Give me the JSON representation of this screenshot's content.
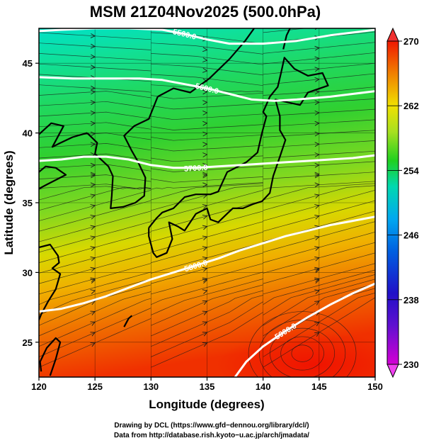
{
  "title": "MSM 21Z04Nov2025 (500.0hPa)",
  "xaxis": {
    "label": "Longitude (degrees)",
    "range": [
      120,
      150
    ],
    "ticks": [
      "120",
      "125",
      "130",
      "135",
      "140",
      "145",
      "150"
    ]
  },
  "yaxis": {
    "label": "Latitude  (degrees)",
    "range": [
      22.5,
      47.5
    ],
    "ticks": [
      "25",
      "30",
      "35",
      "40",
      "45"
    ]
  },
  "colorbar": {
    "range": [
      230,
      270
    ],
    "ticks": [
      "230",
      "238",
      "246",
      "254",
      "262",
      "270"
    ],
    "colors": [
      "#d400d4",
      "#2010c8",
      "#00a8f0",
      "#00d8b0",
      "#20d020",
      "#a8e020",
      "#f0e000",
      "#f08000",
      "#f01800"
    ]
  },
  "contours": [
    {
      "label": "5500.0",
      "value": 5500,
      "points": [
        [
          120,
          47.3
        ],
        [
          122,
          47.4
        ],
        [
          125,
          47.5
        ],
        [
          128,
          47.5
        ],
        [
          131,
          47.4
        ],
        [
          133,
          47.1
        ],
        [
          135,
          46.7
        ],
        [
          137,
          46.4
        ],
        [
          140,
          46.4
        ],
        [
          143,
          46.6
        ],
        [
          146,
          47.0
        ],
        [
          148,
          47.2
        ],
        [
          150,
          47.4
        ]
      ]
    },
    {
      "label": "5600.0",
      "value": 5600,
      "points": [
        [
          120,
          44.0
        ],
        [
          123,
          43.9
        ],
        [
          126,
          43.9
        ],
        [
          129,
          43.9
        ],
        [
          131,
          43.8
        ],
        [
          133,
          43.5
        ],
        [
          135,
          43.2
        ],
        [
          137,
          42.8
        ],
        [
          139,
          42.4
        ],
        [
          141,
          42.3
        ],
        [
          143,
          42.4
        ],
        [
          146,
          42.6
        ],
        [
          148,
          42.8
        ],
        [
          150,
          43.0
        ]
      ]
    },
    {
      "label": "5700.0",
      "value": 5700,
      "points": [
        [
          120,
          38.0
        ],
        [
          122,
          38.1
        ],
        [
          124,
          38.3
        ],
        [
          126,
          38.3
        ],
        [
          128,
          38.1
        ],
        [
          130,
          37.7
        ],
        [
          132,
          37.5
        ],
        [
          134,
          37.5
        ],
        [
          136,
          37.6
        ],
        [
          138,
          37.7
        ],
        [
          140,
          37.8
        ],
        [
          142,
          37.9
        ],
        [
          144,
          38.0
        ],
        [
          146,
          38.1
        ],
        [
          148,
          38.2
        ],
        [
          150,
          38.4
        ]
      ]
    },
    {
      "label": "5800.0",
      "value": 5800,
      "points": [
        [
          120,
          27.2
        ],
        [
          122,
          27.4
        ],
        [
          124,
          27.8
        ],
        [
          126,
          28.3
        ],
        [
          128,
          28.9
        ],
        [
          130,
          29.5
        ],
        [
          132,
          30.0
        ],
        [
          134,
          30.5
        ],
        [
          136,
          31.0
        ],
        [
          138,
          31.6
        ],
        [
          140,
          32.1
        ],
        [
          142,
          32.6
        ],
        [
          144,
          33.0
        ],
        [
          146,
          33.4
        ],
        [
          148,
          33.7
        ],
        [
          150,
          34.0
        ]
      ]
    },
    {
      "label": "5900.0",
      "value": 5900,
      "points": [
        [
          137.5,
          22.5
        ],
        [
          138.5,
          23.6
        ],
        [
          140,
          24.7
        ],
        [
          142,
          25.8
        ],
        [
          144,
          26.8
        ],
        [
          146,
          27.7
        ],
        [
          148,
          28.5
        ],
        [
          150,
          29.2
        ]
      ]
    }
  ],
  "coastline": [
    {
      "name": "kyushu-shikoku-honshu-hokkaido",
      "points": [
        [
          129.8,
          33.2
        ],
        [
          130.5,
          33.9
        ],
        [
          131,
          34.3
        ],
        [
          132,
          34.6
        ],
        [
          133,
          35.4
        ],
        [
          134,
          35.6
        ],
        [
          135.3,
          35.6
        ],
        [
          136,
          35.8
        ],
        [
          136.8,
          37.2
        ],
        [
          137.3,
          37.4
        ],
        [
          138.5,
          37.9
        ],
        [
          139.5,
          38.6
        ],
        [
          139.9,
          40.0
        ],
        [
          140.3,
          41.2
        ],
        [
          140.0,
          41.5
        ],
        [
          140.6,
          42.6
        ],
        [
          141.3,
          43.3
        ],
        [
          141.6,
          44.3
        ],
        [
          141.9,
          45.4
        ],
        [
          142.8,
          44.6
        ],
        [
          144,
          44.1
        ],
        [
          145.3,
          44.3
        ],
        [
          145.8,
          43.4
        ],
        [
          144,
          42.9
        ],
        [
          143.3,
          42.0
        ],
        [
          141.1,
          42.4
        ],
        [
          141.5,
          41.2
        ],
        [
          141.5,
          40.2
        ],
        [
          142.0,
          39.5
        ],
        [
          141.5,
          38.3
        ],
        [
          140.9,
          36.9
        ],
        [
          140.6,
          35.7
        ],
        [
          139.9,
          35.1
        ],
        [
          139.1,
          34.9
        ],
        [
          138.2,
          34.6
        ],
        [
          137.3,
          34.6
        ],
        [
          136.9,
          34.3
        ],
        [
          136.0,
          33.6
        ],
        [
          135.3,
          33.8
        ],
        [
          135.0,
          34.6
        ],
        [
          134.0,
          34.2
        ],
        [
          133.0,
          33.0
        ],
        [
          132.4,
          33.3
        ],
        [
          131.6,
          33.6
        ],
        [
          131.9,
          32.4
        ],
        [
          131.4,
          31.4
        ],
        [
          130.5,
          31.1
        ],
        [
          130.2,
          31.4
        ],
        [
          129.8,
          32.6
        ],
        [
          129.8,
          33.2
        ]
      ]
    },
    {
      "name": "korea",
      "points": [
        [
          124.3,
          40.0
        ],
        [
          125.2,
          39.3
        ],
        [
          125.0,
          38.5
        ],
        [
          126.2,
          37.6
        ],
        [
          126.6,
          36.9
        ],
        [
          126.5,
          35.5
        ],
        [
          126.4,
          34.6
        ],
        [
          127.5,
          34.7
        ],
        [
          128.6,
          35.0
        ],
        [
          129.4,
          35.5
        ],
        [
          129.5,
          36.8
        ],
        [
          128.8,
          38.0
        ],
        [
          128.3,
          38.7
        ],
        [
          127.6,
          39.8
        ],
        [
          128.5,
          40.5
        ],
        [
          129.8,
          41.0
        ],
        [
          130.6,
          42.6
        ]
      ]
    },
    {
      "name": "china-russia",
      "points": [
        [
          120,
          31.8
        ],
        [
          121.0,
          32.0
        ],
        [
          121.7,
          31.2
        ],
        [
          121.8,
          30.7
        ],
        [
          121.2,
          30.3
        ],
        [
          121.9,
          29.9
        ],
        [
          121.5,
          28.8
        ],
        [
          120.8,
          27.9
        ],
        [
          120.2,
          27.0
        ],
        [
          120,
          26.6
        ]
      ]
    },
    {
      "name": "china-north",
      "points": [
        [
          120,
          36.0
        ],
        [
          120.7,
          36.3
        ],
        [
          122.4,
          37.0
        ],
        [
          121.5,
          37.5
        ],
        [
          120.6,
          37.6
        ],
        [
          120,
          37.2
        ]
      ]
    },
    {
      "name": "liaodong",
      "points": [
        [
          120,
          39.9
        ],
        [
          121.1,
          40.7
        ],
        [
          122.2,
          40.5
        ],
        [
          121.2,
          39.0
        ],
        [
          121.7,
          39.2
        ],
        [
          123.0,
          39.7
        ],
        [
          124.3,
          40.0
        ]
      ]
    },
    {
      "name": "russia-coast",
      "points": [
        [
          130.6,
          42.6
        ],
        [
          132.0,
          43.2
        ],
        [
          133.5,
          42.9
        ],
        [
          135.2,
          43.9
        ],
        [
          137.0,
          45.3
        ],
        [
          138.4,
          46.6
        ],
        [
          139.2,
          47.5
        ]
      ]
    },
    {
      "name": "sakhalin",
      "points": [
        [
          141.8,
          46.0
        ],
        [
          142.1,
          47.0
        ],
        [
          142.4,
          47.5
        ]
      ]
    },
    {
      "name": "taiwan",
      "points": [
        [
          120.2,
          22.9
        ],
        [
          120.1,
          23.6
        ],
        [
          120.7,
          24.6
        ],
        [
          121.5,
          25.3
        ],
        [
          121.9,
          25.0
        ],
        [
          121.5,
          23.8
        ],
        [
          121.0,
          22.6
        ]
      ]
    },
    {
      "name": "ryukyu",
      "points": [
        [
          127.6,
          26.1
        ],
        [
          128.0,
          26.7
        ],
        [
          128.3,
          26.9
        ]
      ]
    }
  ],
  "credits": [
    "Drawing by DCL (https://www.gfd−dennou.org/library/dcl/)",
    "Data from http://database.rish.kyoto−u.ac.jp/arch/jmadata/"
  ]
}
